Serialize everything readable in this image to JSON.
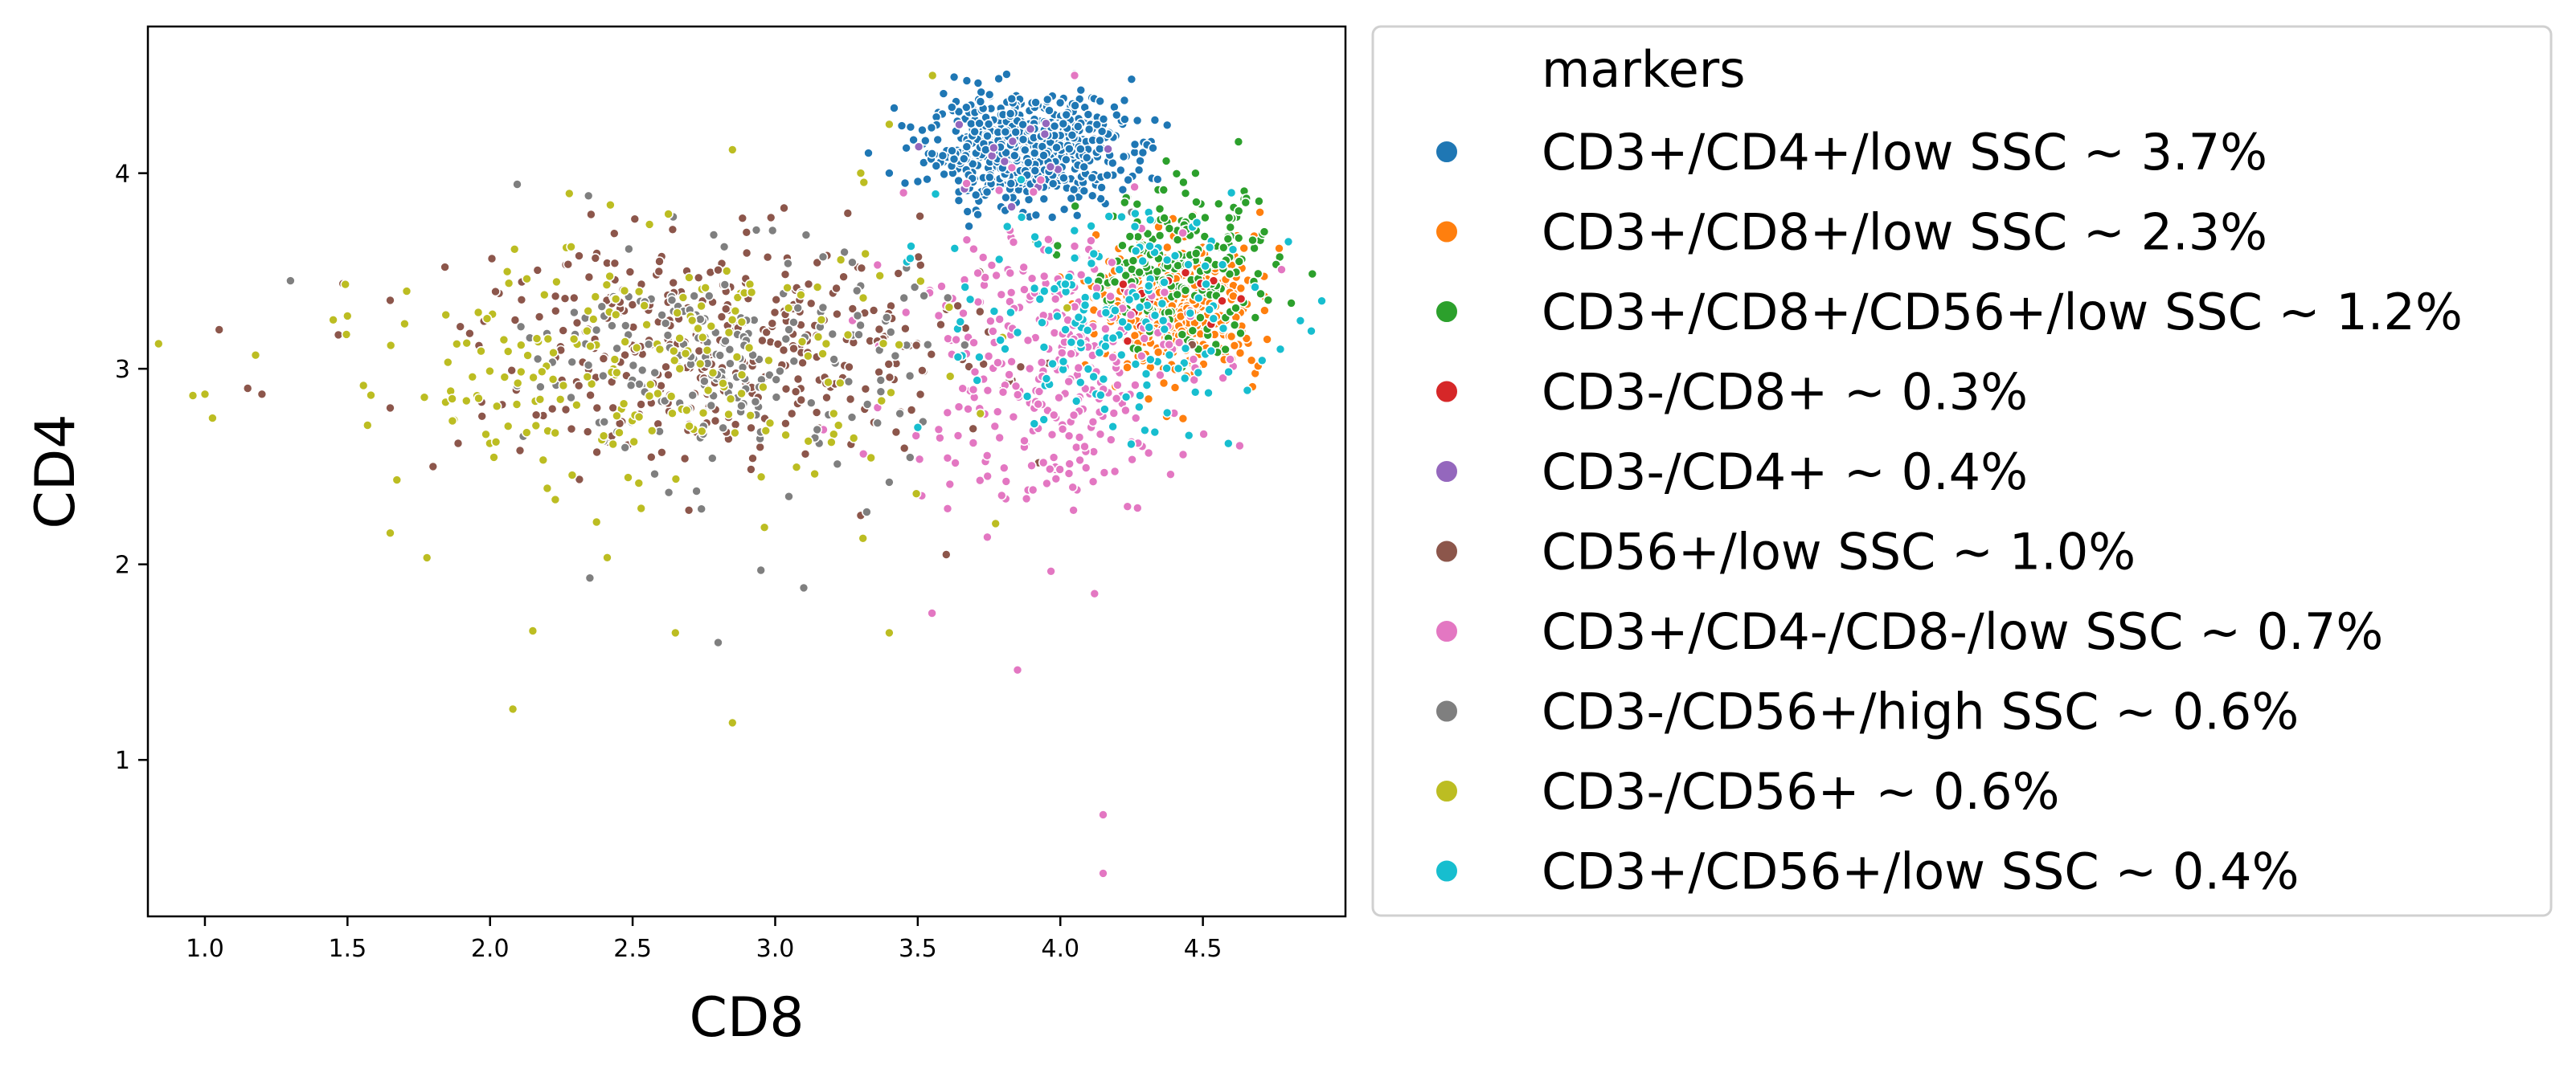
{
  "chart_data": {
    "type": "scatter",
    "xlabel": "CD8",
    "ylabel": "CD4",
    "xlim": [
      0.8,
      5.0
    ],
    "ylim": [
      0.2,
      4.75
    ],
    "xticks": [
      "1.0",
      "1.5",
      "2.0",
      "2.5",
      "3.0",
      "3.5",
      "4.0",
      "4.5"
    ],
    "yticks": [
      "1",
      "2",
      "3",
      "4"
    ],
    "legend": {
      "title": "markers",
      "placement": "outside-right"
    },
    "series": [
      {
        "name": "CD3+/CD4+/low SSC ~ 3.7%",
        "color": "#1f77b4",
        "cluster": {
          "cx": 3.88,
          "cy": 4.12,
          "sx": 0.17,
          "sy": 0.13,
          "n": 700
        },
        "outliers": [
          [
            3.4,
            4.0
          ],
          [
            4.25,
            4.48
          ],
          [
            4.35,
            3.75
          ],
          [
            3.55,
            4.1
          ]
        ]
      },
      {
        "name": "CD3+/CD8+/low SSC ~ 2.3%",
        "color": "#ff7f0e",
        "cluster": {
          "cx": 4.42,
          "cy": 3.32,
          "sx": 0.14,
          "sy": 0.17,
          "n": 420
        },
        "outliers": [
          [
            4.7,
            3.8
          ],
          [
            4.62,
            3.68
          ]
        ]
      },
      {
        "name": "CD3+/CD8+/CD56+/low SSC ~ 1.2%",
        "color": "#2ca02c",
        "cluster": {
          "cx": 4.42,
          "cy": 3.5,
          "sx": 0.17,
          "sy": 0.2,
          "n": 220
        },
        "outliers": [
          [
            4.65,
            3.85
          ],
          [
            4.2,
            3.55
          ]
        ]
      },
      {
        "name": "CD3-/CD8+ ~ 0.3%",
        "color": "#d62728",
        "cluster": {
          "cx": 4.4,
          "cy": 3.35,
          "sx": 0.15,
          "sy": 0.15,
          "n": 18
        },
        "outliers": []
      },
      {
        "name": "CD3-/CD4+ ~ 0.4%",
        "color": "#9467bd",
        "cluster": {
          "cx": 3.85,
          "cy": 4.1,
          "sx": 0.15,
          "sy": 0.12,
          "n": 15
        },
        "outliers": []
      },
      {
        "name": "CD56+/low SSC ~ 1.0%",
        "color": "#8c564b",
        "cluster": {
          "cx": 2.85,
          "cy": 3.1,
          "sx": 0.45,
          "sy": 0.28,
          "n": 360
        },
        "outliers": [
          [
            1.05,
            3.2
          ],
          [
            1.15,
            2.9
          ],
          [
            1.2,
            2.87
          ],
          [
            1.65,
            2.8
          ],
          [
            1.8,
            2.5
          ],
          [
            3.3,
            2.25
          ],
          [
            3.6,
            2.05
          ],
          [
            1.65,
            3.35
          ]
        ]
      },
      {
        "name": "CD3+/CD4-/CD8-/low SSC ~ 0.7%",
        "color": "#e377c2",
        "cluster": {
          "cx": 3.95,
          "cy": 3.05,
          "sx": 0.25,
          "sy": 0.38,
          "n": 330
        },
        "outliers": [
          [
            4.15,
            0.72
          ],
          [
            4.15,
            0.42
          ],
          [
            3.85,
            1.46
          ],
          [
            4.12,
            1.85
          ],
          [
            3.55,
            1.75
          ],
          [
            3.45,
            3.9
          ],
          [
            4.05,
            4.5
          ]
        ]
      },
      {
        "name": "CD3-/CD56+/high SSC ~ 0.6%",
        "color": "#7f7f7f",
        "cluster": {
          "cx": 2.85,
          "cy": 3.05,
          "sx": 0.32,
          "sy": 0.28,
          "n": 210
        },
        "outliers": [
          [
            1.3,
            3.45
          ],
          [
            2.35,
            1.93
          ],
          [
            2.8,
            1.6
          ],
          [
            2.95,
            1.97
          ],
          [
            3.1,
            1.88
          ],
          [
            3.4,
            2.42
          ],
          [
            4.25,
            3.8
          ]
        ]
      },
      {
        "name": "CD3-/CD56+ ~ 0.6%",
        "color": "#bcbd22",
        "cluster": {
          "cx": 2.5,
          "cy": 3.0,
          "sx": 0.55,
          "sy": 0.35,
          "n": 230
        },
        "outliers": [
          [
            1.0,
            2.87
          ],
          [
            1.45,
            3.25
          ],
          [
            1.5,
            3.27
          ],
          [
            1.65,
            2.16
          ],
          [
            2.08,
            1.26
          ],
          [
            2.15,
            1.66
          ],
          [
            2.85,
            1.19
          ],
          [
            2.65,
            1.65
          ],
          [
            3.4,
            1.65
          ],
          [
            2.85,
            4.12
          ],
          [
            3.4,
            4.25
          ],
          [
            3.3,
            4.0
          ]
        ]
      },
      {
        "name": "CD3+/CD56+/low SSC ~ 0.4%",
        "color": "#17becf",
        "cluster": {
          "cx": 4.15,
          "cy": 3.25,
          "sx": 0.28,
          "sy": 0.28,
          "n": 170
        },
        "outliers": [
          [
            4.8,
            3.65
          ],
          [
            3.5,
            2.7
          ],
          [
            4.6,
            3.9
          ]
        ]
      }
    ]
  }
}
